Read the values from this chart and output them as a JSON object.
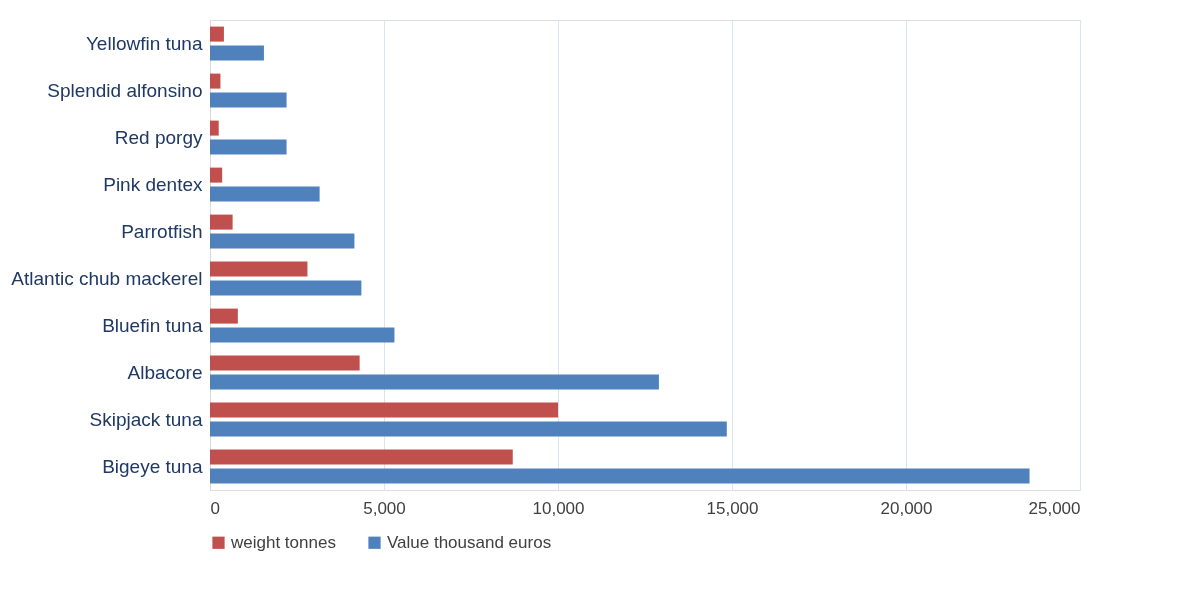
{
  "chart_data": {
    "type": "bar",
    "orientation": "horizontal",
    "categories": [
      "Yellowfin tuna",
      "Splendid alfonsino",
      "Red porgy",
      "Pink dentex",
      "Parrotfish",
      "Atlantic chub mackerel",
      "Bluefin tuna",
      "Albacore",
      "Skipjack tuna",
      "Bigeye tuna"
    ],
    "series": [
      {
        "name": "weight tonnes",
        "color": "#c0504d",
        "values": [
          400,
          300,
          250,
          350,
          650,
          2800,
          800,
          4300,
          10000,
          8700
        ]
      },
      {
        "name": "Value thousand euros",
        "color": "#4f81bd",
        "values": [
          1550,
          2200,
          2200,
          3150,
          4150,
          4350,
          5300,
          12900,
          14850,
          23550
        ]
      }
    ],
    "xlim": [
      0,
      25000
    ],
    "xticks": [
      {
        "value": 0,
        "label": "0"
      },
      {
        "value": 5000,
        "label": "5,000"
      },
      {
        "value": 10000,
        "label": "10,000"
      },
      {
        "value": 15000,
        "label": "15,000"
      },
      {
        "value": 20000,
        "label": "20,000"
      },
      {
        "value": 25000,
        "label": "25,000"
      }
    ],
    "grid": "x",
    "legend": "bottom"
  }
}
